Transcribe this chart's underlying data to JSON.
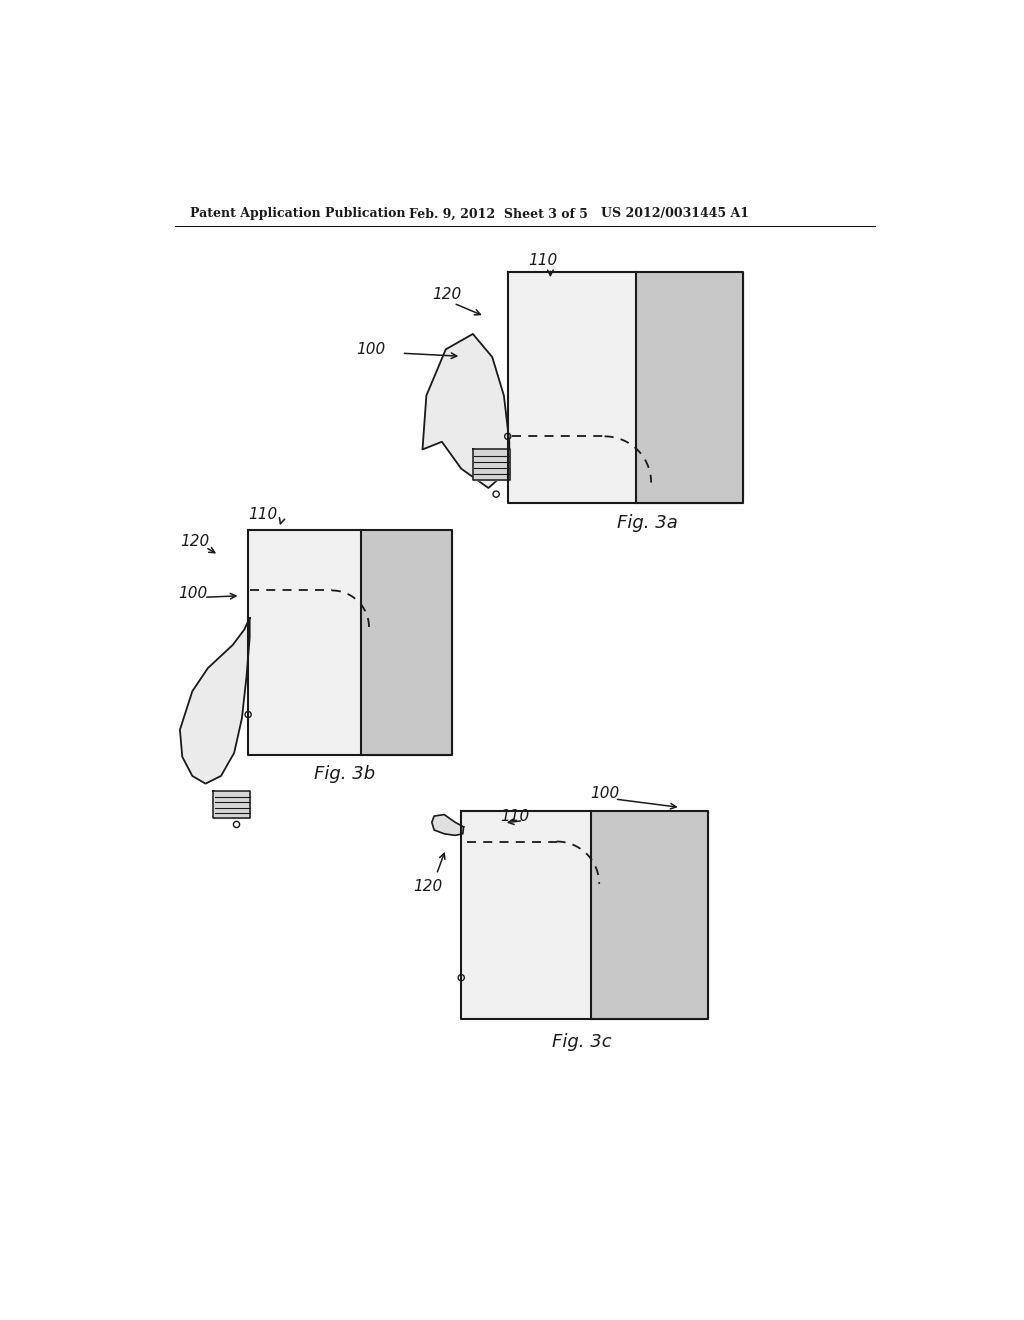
{
  "background_color": "#ffffff",
  "header1": "Patent Application Publication",
  "header2": "Feb. 9, 2012  Sheet 3 of 5",
  "header3": "US 2012/0031445 A1",
  "fig3a_label": "Fig. 3a",
  "fig3b_label": "Fig. 3b",
  "fig3c_label": "Fig. 3c",
  "line_color": "#1a1a1a",
  "text_color": "#1a1a1a",
  "shade_color": "#c8c8c8",
  "arm_fill": "#e8e8e8",
  "arm_fill2": "#d0d0d0",
  "note_font_size": 9,
  "label_font_size": 11,
  "fig_label_font_size": 13
}
